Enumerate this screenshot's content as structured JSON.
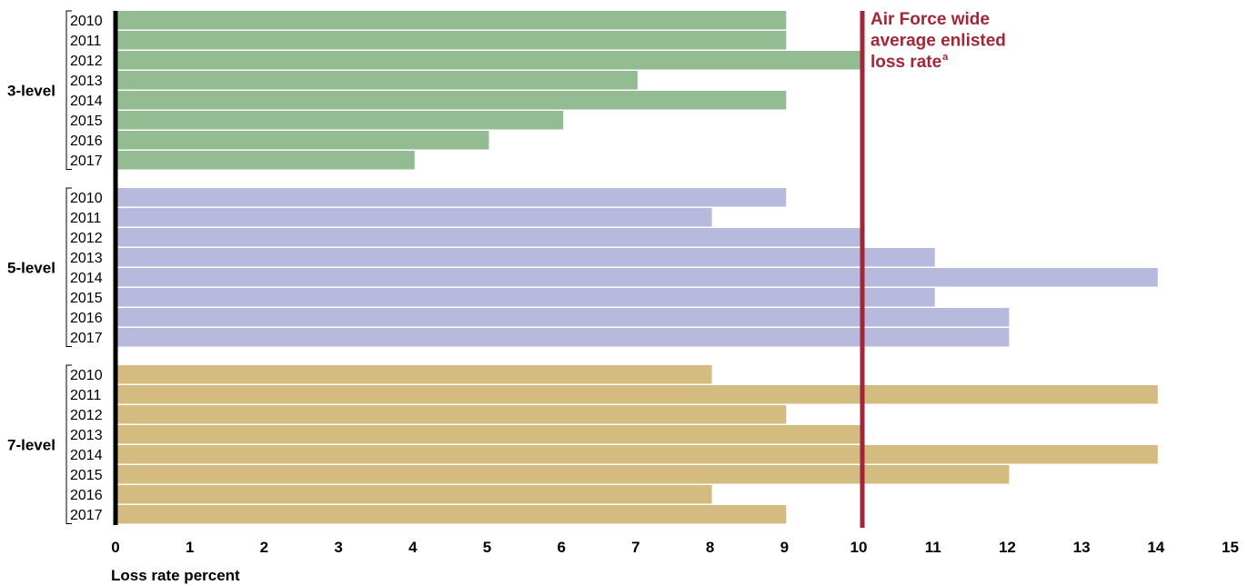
{
  "chart_data": {
    "type": "bar",
    "orientation": "horizontal",
    "xlabel": "Loss rate percent",
    "xlim": [
      0,
      15
    ],
    "xticks": [
      "0",
      "1",
      "2",
      "3",
      "4",
      "5",
      "6",
      "7",
      "8",
      "9",
      "10",
      "11",
      "12",
      "13",
      "14",
      "15"
    ],
    "grid": false,
    "reference_line": {
      "value": 10,
      "label_lines": [
        "Air Force wide",
        "average enlisted",
        "loss rate"
      ],
      "footnote_marker": "a",
      "color": "#a32638"
    },
    "groups": [
      {
        "name": "3-level",
        "color": "#93bc93",
        "categories": [
          "2010",
          "2011",
          "2012",
          "2013",
          "2014",
          "2015",
          "2016",
          "2017"
        ],
        "values": [
          9,
          9,
          10,
          7,
          9,
          6,
          5,
          4
        ]
      },
      {
        "name": "5-level",
        "color": "#b7badc",
        "categories": [
          "2010",
          "2011",
          "2012",
          "2013",
          "2014",
          "2015",
          "2016",
          "2017"
        ],
        "values": [
          9,
          8,
          10,
          11,
          14,
          11,
          12,
          12
        ]
      },
      {
        "name": "7-level",
        "color": "#d4bb80",
        "categories": [
          "2010",
          "2011",
          "2012",
          "2013",
          "2014",
          "2015",
          "2016",
          "2017"
        ],
        "values": [
          8,
          14,
          9,
          10,
          14,
          12,
          8,
          9
        ]
      }
    ]
  }
}
